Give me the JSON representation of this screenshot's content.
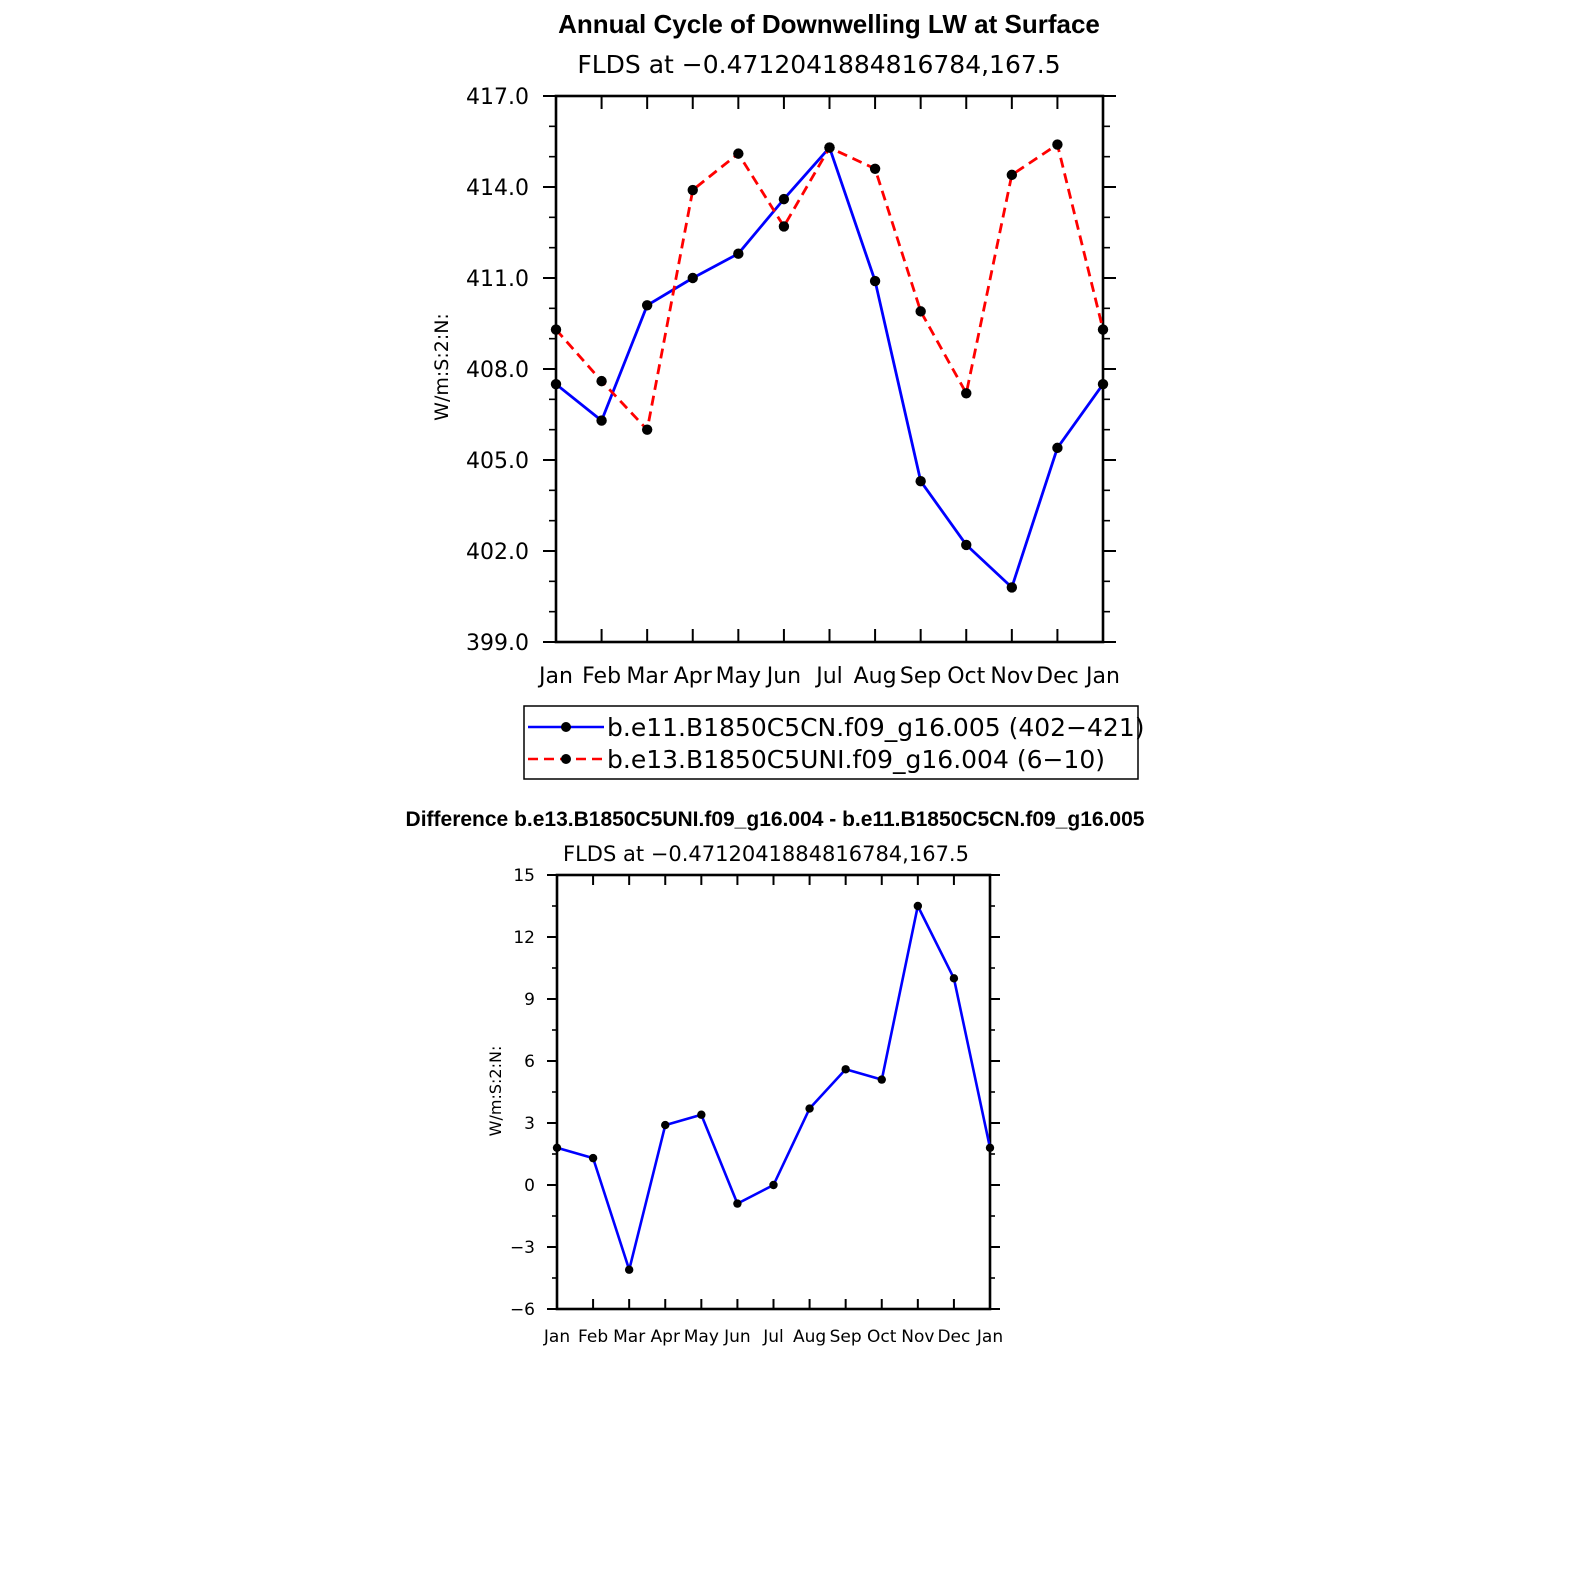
{
  "colors": {
    "series_a": "#0000ff",
    "series_b": "#ff0000",
    "marker": "#000000",
    "axis": "#000000"
  },
  "chart_data": [
    {
      "type": "line",
      "title": "Annual Cycle of Downwelling LW at Surface",
      "subtitle": "FLDS at −0.4712041884816784,167.5",
      "ylabel": "W/m:S:2:N:",
      "ylim": [
        399.0,
        417.0
      ],
      "yticks": [
        "399.0",
        "402.0",
        "405.0",
        "408.0",
        "411.0",
        "414.0",
        "417.0"
      ],
      "categories": [
        "Jan",
        "Feb",
        "Mar",
        "Apr",
        "May",
        "Jun",
        "Jul",
        "Aug",
        "Sep",
        "Oct",
        "Nov",
        "Dec",
        "Jan"
      ],
      "grid": false,
      "legend": "below",
      "series": [
        {
          "name": "b.e11.B1850C5CN.f09_g16.005 (402−421)",
          "style": "solid",
          "values": [
            407.5,
            406.3,
            410.1,
            411.0,
            411.8,
            413.6,
            415.3,
            410.9,
            404.3,
            402.2,
            400.8,
            405.4,
            407.5
          ]
        },
        {
          "name": "b.e13.B1850C5UNI.f09_g16.004 (6−10)",
          "style": "dashed",
          "values": [
            409.3,
            407.6,
            406.0,
            413.9,
            415.1,
            412.7,
            415.3,
            414.6,
            409.9,
            407.2,
            414.4,
            415.4,
            409.3
          ]
        }
      ]
    },
    {
      "type": "line",
      "title": "Difference b.e13.B1850C5UNI.f09_g16.004 - b.e11.B1850C5CN.f09_g16.005",
      "subtitle": "FLDS at −0.4712041884816784,167.5",
      "ylabel": "W/m:S:2:N:",
      "ylim": [
        -6,
        15
      ],
      "yticks": [
        "−6",
        "−3",
        "0",
        "3",
        "6",
        "9",
        "12",
        "15"
      ],
      "categories": [
        "Jan",
        "Feb",
        "Mar",
        "Apr",
        "May",
        "Jun",
        "Jul",
        "Aug",
        "Sep",
        "Oct",
        "Nov",
        "Dec",
        "Jan"
      ],
      "grid": false,
      "series": [
        {
          "style": "solid",
          "values": [
            1.8,
            1.3,
            -4.1,
            2.9,
            3.4,
            -0.9,
            0.0,
            3.7,
            5.6,
            5.1,
            13.5,
            10.0,
            1.8
          ]
        }
      ]
    }
  ]
}
